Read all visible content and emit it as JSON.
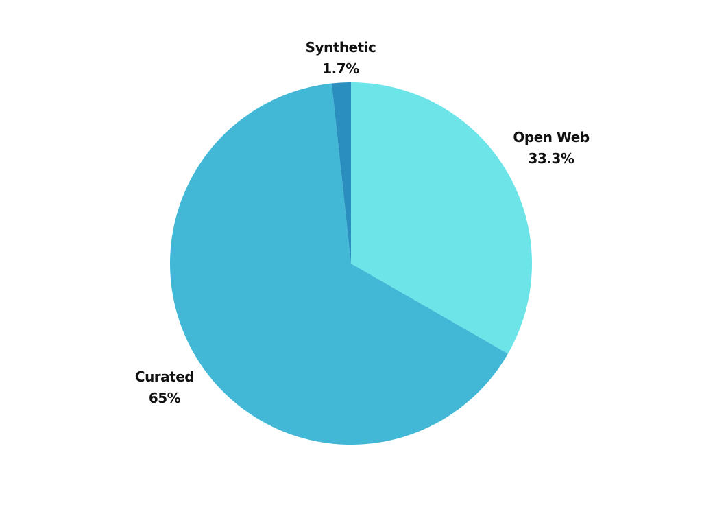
{
  "chart_data": {
    "type": "pie",
    "title": "",
    "start_angle_deg": 0,
    "direction": "clockwise",
    "slices": [
      {
        "label": "Open Web",
        "value": 33.3,
        "value_label": "33.3%",
        "color": "#6ce4e8"
      },
      {
        "label": "Curated",
        "value": 65,
        "value_label": "65%",
        "color": "#43b8d6"
      },
      {
        "label": "Synthetic",
        "value": 1.7,
        "value_label": "1.7%",
        "color": "#2a8fbf"
      }
    ]
  }
}
